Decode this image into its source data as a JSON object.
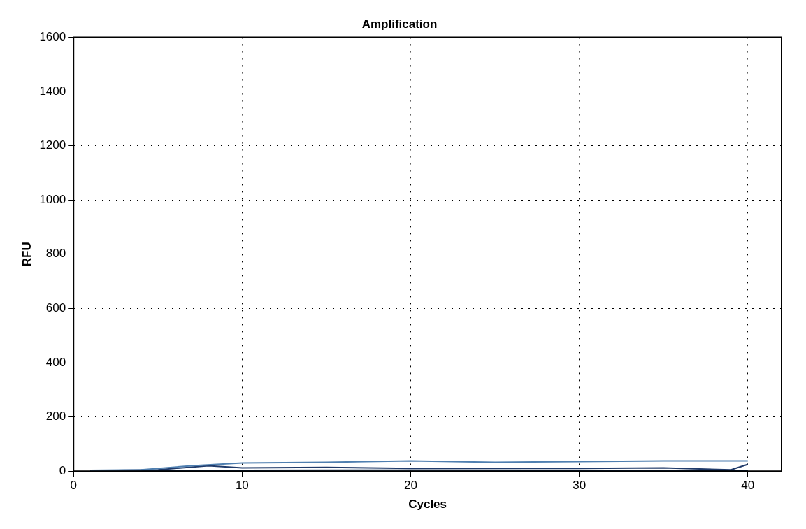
{
  "chart_data": {
    "type": "line",
    "title": "Amplification",
    "xlabel": "Cycles",
    "ylabel": "RFU",
    "xlim": [
      0,
      42
    ],
    "xticks": [
      0,
      10,
      20,
      30,
      40
    ],
    "ylim": [
      0,
      1600
    ],
    "yticks": [
      0,
      200,
      400,
      600,
      800,
      1000,
      1200,
      1400,
      1600
    ],
    "grid": true,
    "legend": false,
    "marker": "none",
    "line_style": "solid",
    "series": [
      {
        "color": "#4f7fb0",
        "x": [
          1,
          4,
          7,
          10,
          15,
          20,
          25,
          30,
          35,
          40
        ],
        "values": [
          3,
          5,
          20,
          30,
          33,
          38,
          33,
          35,
          38,
          38
        ]
      },
      {
        "color": "#1f3a6a",
        "x": [
          1,
          5,
          8,
          10,
          15,
          20,
          30,
          35,
          39,
          40
        ],
        "values": [
          2,
          5,
          20,
          12,
          14,
          10,
          10,
          12,
          5,
          25
        ]
      },
      {
        "color": "#0b2a55",
        "x": [
          1,
          10,
          20,
          30,
          40
        ],
        "values": [
          2,
          3,
          4,
          3,
          3
        ]
      }
    ]
  }
}
